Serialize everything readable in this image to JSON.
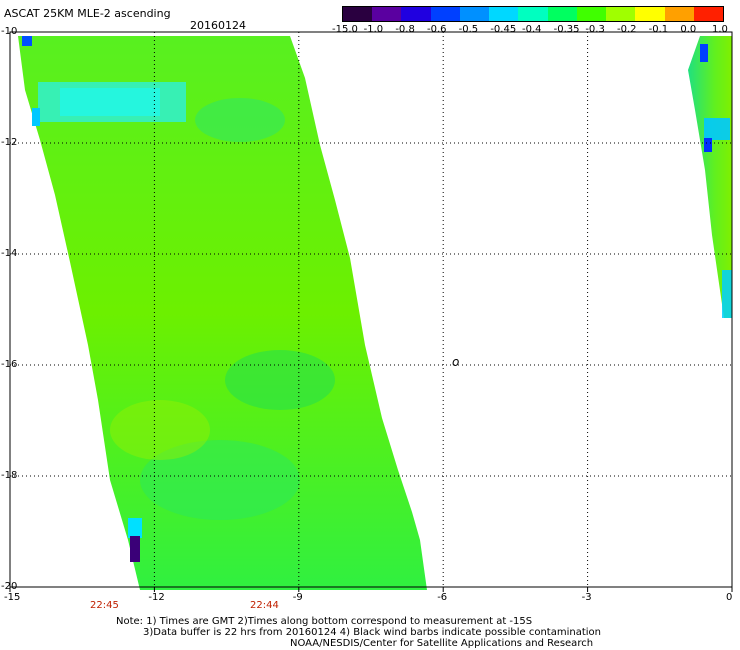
{
  "header": {
    "title": "ASCAT 25KM MLE-2 ascending",
    "date": "20160124"
  },
  "colorbar": {
    "labels": [
      "-15.0",
      "-1.0",
      "-0.8",
      "-0.6",
      "-0.5",
      "-0.45",
      "-0.4",
      "-0.35",
      "-0.3",
      "-0.2",
      "-0.1",
      "0.0",
      "1.0"
    ],
    "colors": [
      "#2a0040",
      "#5a00a0",
      "#2000e0",
      "#0040ff",
      "#0090ff",
      "#00d8ff",
      "#00ffc0",
      "#00ff60",
      "#40ff00",
      "#a0ff00",
      "#ffff00",
      "#ffa000",
      "#ff2000"
    ]
  },
  "axes": {
    "lon_range": [
      -15,
      0
    ],
    "lat_range": [
      -20,
      -10
    ],
    "x_ticks": [
      "-15",
      "-12",
      "-9",
      "-6",
      "-3",
      "0"
    ],
    "y_ticks": [
      "-10",
      "-12",
      "-14",
      "-16",
      "-18",
      "-20"
    ],
    "grid": "dotted"
  },
  "times": [
    "22:45",
    "22:44"
  ],
  "marker": "o",
  "notes": {
    "line1": "Note: 1) Times are GMT 2)Times along bottom correspond to measurement at -15S",
    "line2": "3)Data buffer is 22 hrs from 20160124 4) Black wind barbs indicate possible contamination",
    "line3": "NOAA/NESDIS/Center for Satellite Applications and Research"
  }
}
